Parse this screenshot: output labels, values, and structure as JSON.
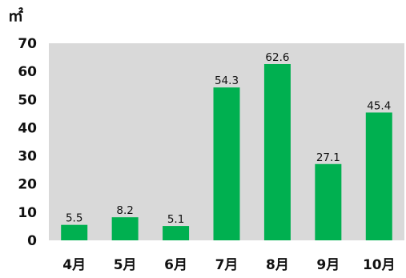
{
  "chart_data": {
    "type": "bar",
    "unit_label": "㎡",
    "categories": [
      "4月",
      "5月",
      "6月",
      "7月",
      "8月",
      "9月",
      "10月"
    ],
    "values": [
      5.5,
      8.2,
      5.1,
      54.3,
      62.6,
      27.1,
      45.4
    ],
    "data_labels": [
      "5.5",
      "8.2",
      "5.1",
      "54.3",
      "62.6",
      "27.1",
      "45.4"
    ],
    "ylim": [
      0,
      70
    ],
    "yticks": [
      0,
      10,
      20,
      30,
      40,
      50,
      60,
      70
    ],
    "grid": false,
    "legend": "none",
    "colors": {
      "bar": "#00b050",
      "plot_background": "#d9d9d9"
    }
  }
}
